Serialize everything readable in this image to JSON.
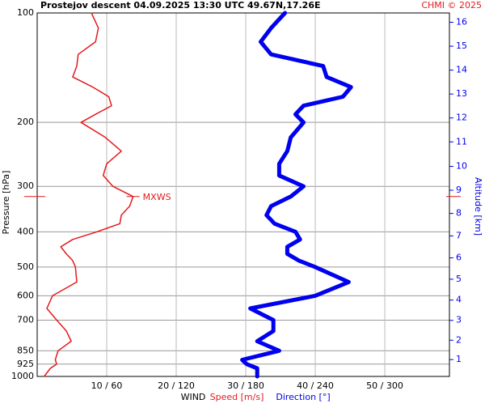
{
  "chart_data": {
    "type": "line",
    "orientation": "vertical-profile",
    "title": "Prostejov  descent   04.09.2025 13:30 UTC  49.67N,17.26E",
    "credit": "CHMI © 2025",
    "xlabel": "WIND",
    "ylabel": "Pressure [hPa]",
    "y2label": "Altitude [km]",
    "y_log": true,
    "grid": true,
    "pressure": [
      100,
      110,
      120,
      130,
      140,
      150,
      160,
      170,
      180,
      190,
      200,
      220,
      240,
      260,
      280,
      300,
      320,
      340,
      360,
      380,
      400,
      420,
      440,
      460,
      480,
      500,
      550,
      600,
      650,
      700,
      750,
      800,
      850,
      900,
      925,
      950,
      1000
    ],
    "series": [
      {
        "name": "Speed [m/s]",
        "color": "#e41a1c",
        "axis": "x",
        "values": [
          7.8,
          8.8,
          8.4,
          5.9,
          5.7,
          5.1,
          8.0,
          10.3,
          10.7,
          8.4,
          6.3,
          9.8,
          12.1,
          10.0,
          9.5,
          10.9,
          13.8,
          13.3,
          12.1,
          11.9,
          8.6,
          5.1,
          3.4,
          4.2,
          5.1,
          5.5,
          5.7,
          2.2,
          1.4,
          2.8,
          4.2,
          4.9,
          3.0,
          2.6,
          2.8,
          1.9,
          1.0
        ]
      },
      {
        "name": "Direction [°]",
        "color": "#0000ee",
        "axis": "x2",
        "values": [
          214,
          202,
          193,
          202,
          247,
          250,
          271,
          264,
          230,
          223,
          230,
          219,
          216,
          209,
          209,
          230,
          219,
          202,
          198,
          205,
          223,
          227,
          216,
          216,
          226,
          240,
          269,
          240,
          184,
          204,
          204,
          190,
          209,
          177,
          181,
          190,
          190
        ]
      }
    ],
    "mxws": {
      "label": "MXWS",
      "pressure": 320
    },
    "xlim": [
      0,
      59.3
    ],
    "x2lim": [
      0,
      356
    ],
    "xticks": [
      {
        "value": 10,
        "label": "10 / 60"
      },
      {
        "value": 20,
        "label": "20 / 120"
      },
      {
        "value": 30,
        "label": "30 / 180"
      },
      {
        "value": 40,
        "label": "40 / 240"
      },
      {
        "value": 50,
        "label": "50 / 300"
      }
    ],
    "ylim": [
      100,
      1000
    ],
    "yticks": [
      100,
      200,
      300,
      400,
      500,
      600,
      700,
      850,
      925,
      1000
    ],
    "y2ticks": [
      1,
      2,
      3,
      4,
      5,
      6,
      7,
      8,
      9,
      10,
      11,
      12,
      13,
      14,
      15,
      16
    ]
  }
}
